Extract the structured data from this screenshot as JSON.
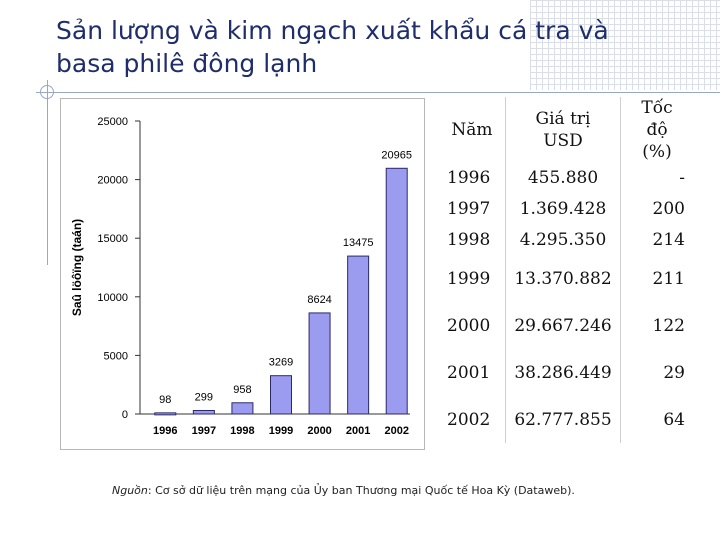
{
  "page": {
    "title": "Sản lượng và kim ngạch xuất khẩu cá tra và basa philê đông lạnh",
    "source_prefix": "Nguồn",
    "source_text": ": Cơ sở dữ liệu trên mạng của Ủy ban Thương mại Quốc tế Hoa Kỳ (Dataweb)."
  },
  "chart_data": {
    "type": "bar",
    "categories": [
      "1996",
      "1997",
      "1998",
      "1999",
      "2000",
      "2001",
      "2002"
    ],
    "values": [
      98,
      299,
      958,
      3269,
      8624,
      13475,
      20965
    ],
    "data_labels": [
      "98",
      "299",
      "958",
      "3269",
      "8624",
      "13475",
      "20965"
    ],
    "ylabel": "Saû löôïng (taán)",
    "ylim": [
      0,
      25000
    ],
    "yticks": [
      0,
      5000,
      10000,
      15000,
      20000,
      25000
    ],
    "ytick_labels": [
      "0",
      "5000",
      "10000",
      "15000",
      "20000",
      "25000"
    ],
    "bar_color": "#9b9bf0",
    "bar_edge": "#2a2a66",
    "grid": false,
    "legend": "none"
  },
  "table": {
    "headers": [
      "Năm",
      "Giá trị USD",
      "Tốc độ (%)"
    ],
    "rows": [
      [
        "1996",
        "455.880",
        "-"
      ],
      [
        "1997",
        "1.369.428",
        "200"
      ],
      [
        "1998",
        "4.295.350",
        "214"
      ],
      [
        "1999",
        "13.370.882",
        "211"
      ],
      [
        "2000",
        "29.667.246",
        "122"
      ],
      [
        "2001",
        "38.286.449",
        "29"
      ],
      [
        "2002",
        "62.777.855",
        "64"
      ]
    ]
  }
}
